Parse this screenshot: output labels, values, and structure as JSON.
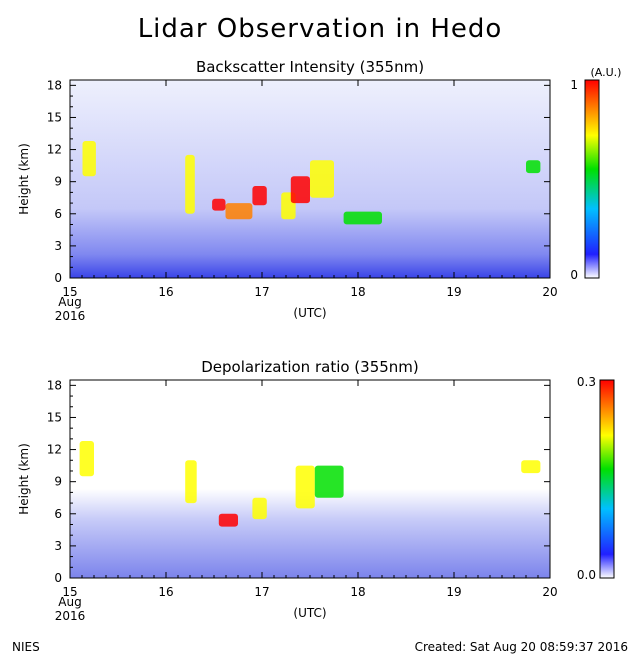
{
  "title": "Lidar Observation in Hedo",
  "footer": {
    "left": "NIES",
    "right": "Created: Sat Aug 20 08:59:37 2016"
  },
  "colors": {
    "colormap": [
      "#ffffff",
      "#0000ff",
      "#00ffff",
      "#00ff00",
      "#ffff00",
      "#ff8000",
      "#ff0000"
    ]
  },
  "chart_data": [
    {
      "type": "heatmap",
      "title": "Backscatter Intensity (355nm)",
      "ylabel": "Height (km)",
      "xlabel": "(UTC)",
      "x_ticks": [
        "15",
        "16",
        "17",
        "18",
        "19",
        "20"
      ],
      "x_date_label": [
        "Aug",
        "2016"
      ],
      "xlim": [
        15,
        20
      ],
      "y_ticks": [
        "0",
        "3",
        "6",
        "9",
        "12",
        "15",
        "18"
      ],
      "ylim": [
        0,
        18.5
      ],
      "colorbar": {
        "label": "(A.U.)",
        "min": "0",
        "max": "1"
      },
      "features": [
        {
          "x": [
            15.13,
            15.27
          ],
          "y": [
            9.5,
            12.8
          ],
          "level": 0.55
        },
        {
          "x": [
            16.2,
            16.3
          ],
          "y": [
            6.0,
            11.5
          ],
          "level": 0.5
        },
        {
          "x": [
            16.48,
            16.62
          ],
          "y": [
            6.3,
            7.4
          ],
          "level": 1.0
        },
        {
          "x": [
            16.62,
            16.9
          ],
          "y": [
            5.5,
            7.0
          ],
          "level": 0.75
        },
        {
          "x": [
            16.9,
            17.05
          ],
          "y": [
            6.8,
            8.6
          ],
          "level": 1.0
        },
        {
          "x": [
            17.2,
            17.35
          ],
          "y": [
            5.5,
            8.0
          ],
          "level": 0.6
        },
        {
          "x": [
            17.3,
            17.5
          ],
          "y": [
            7.0,
            9.5
          ],
          "level": 0.9
        },
        {
          "x": [
            17.5,
            17.75
          ],
          "y": [
            7.5,
            11.0
          ],
          "level": 0.55
        },
        {
          "x": [
            17.85,
            18.25
          ],
          "y": [
            5.0,
            6.2
          ],
          "level": 0.45
        },
        {
          "x": [
            19.75,
            19.9
          ],
          "y": [
            9.8,
            11.0
          ],
          "level": 0.35
        }
      ]
    },
    {
      "type": "heatmap",
      "title": "Depolarization ratio (355nm)",
      "ylabel": "Height (km)",
      "xlabel": "(UTC)",
      "x_ticks": [
        "15",
        "16",
        "17",
        "18",
        "19",
        "20"
      ],
      "x_date_label": [
        "Aug",
        "2016"
      ],
      "xlim": [
        15,
        20
      ],
      "y_ticks": [
        "0",
        "3",
        "6",
        "9",
        "12",
        "15",
        "18"
      ],
      "ylim": [
        0,
        18.5
      ],
      "colorbar": {
        "label": "",
        "min": "0.0",
        "max": "0.3"
      },
      "features": [
        {
          "x": [
            15.1,
            15.25
          ],
          "y": [
            9.5,
            12.8
          ],
          "level": 0.55
        },
        {
          "x": [
            16.2,
            16.32
          ],
          "y": [
            7.0,
            11.0
          ],
          "level": 0.55
        },
        {
          "x": [
            16.55,
            16.75
          ],
          "y": [
            4.8,
            6.0
          ],
          "level": 1.0
        },
        {
          "x": [
            16.9,
            17.05
          ],
          "y": [
            5.5,
            7.5
          ],
          "level": 0.6
        },
        {
          "x": [
            17.35,
            17.55
          ],
          "y": [
            6.5,
            10.5
          ],
          "level": 0.6
        },
        {
          "x": [
            17.55,
            17.85
          ],
          "y": [
            7.5,
            10.5
          ],
          "level": 0.45
        },
        {
          "x": [
            19.7,
            19.9
          ],
          "y": [
            9.8,
            11.0
          ],
          "level": 0.6
        }
      ]
    }
  ]
}
